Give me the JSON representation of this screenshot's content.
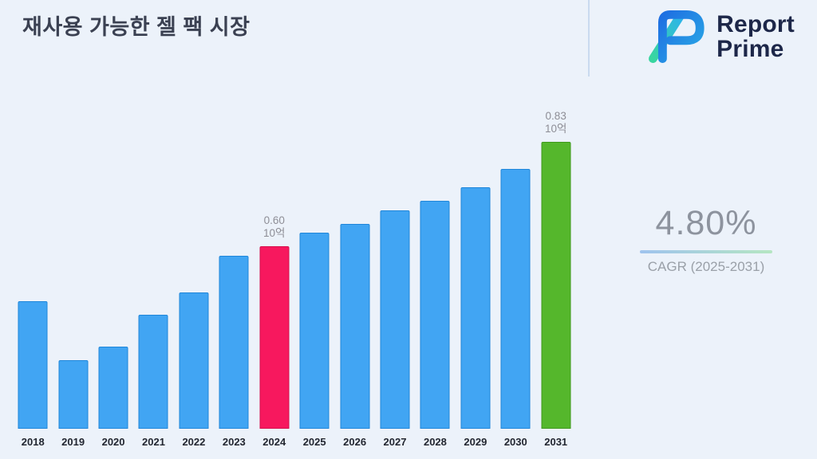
{
  "page": {
    "title": "재사용 가능한 젤 팩 시장",
    "background": "#ecf2fa"
  },
  "logo": {
    "line1": "Report",
    "line2": "Prime"
  },
  "stats": {
    "cagr_value": "4.80%",
    "cagr_label": "CAGR (2025-2031)"
  },
  "chart_data": {
    "type": "bar",
    "title": "재사용 가능한 젤 팩 시장",
    "categories": [
      "2018",
      "2019",
      "2020",
      "2021",
      "2022",
      "2023",
      "2024",
      "2025",
      "2026",
      "2027",
      "2028",
      "2029",
      "2030",
      "2031"
    ],
    "values": [
      0.48,
      0.35,
      0.38,
      0.45,
      0.5,
      0.58,
      0.6,
      0.63,
      0.65,
      0.68,
      0.7,
      0.73,
      0.77,
      0.83
    ],
    "unit": "10억",
    "ylim": [
      0.2,
      0.9
    ],
    "grid": false,
    "legend": false,
    "xlabel": "",
    "ylabel": "",
    "bar_color": "#41a5f3",
    "bar_border": "#1f86da",
    "highlight_bars": [
      {
        "category": "2024",
        "color": "#f7185e",
        "border": "#d60e4c",
        "label_value": "0.60",
        "label_unit": "10억"
      },
      {
        "category": "2031",
        "color": "#55b72c",
        "border": "#3f991c",
        "label_value": "0.83",
        "label_unit": "10억"
      }
    ]
  }
}
